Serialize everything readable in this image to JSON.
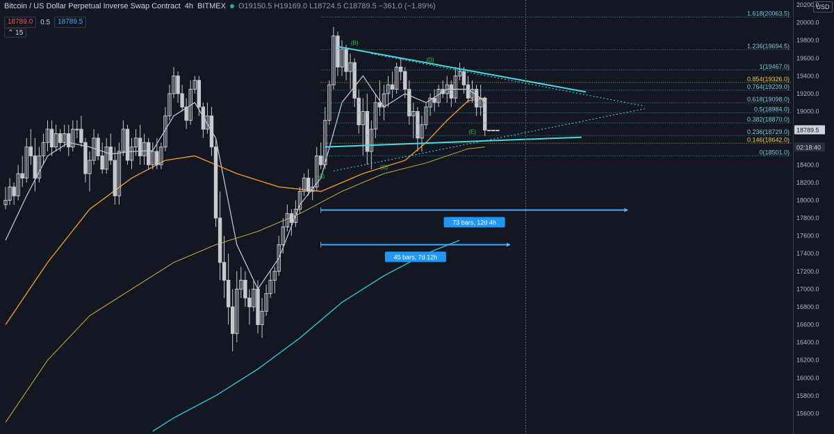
{
  "header": {
    "symbol": "Bitcoin / US Dollar Perpetual Inverse Swap Contract",
    "interval": "4h",
    "exchange": "BITMEX",
    "ohlc": "O19150.5  H19169.0  L18724.5  C18789.5  −361.0 (−1.89%)",
    "bid": "18789.0",
    "spread": "0.5",
    "ask": "18789.5",
    "collapse": "15",
    "currency": "USD"
  },
  "colors": {
    "background": "#131722",
    "candle": "#c8c9cc",
    "ema_fast": "#bcd1e8",
    "ema_mid": "#f0962d",
    "ema_slow": "#c9b041",
    "ema_long": "#2fc2d6",
    "trend": "#4dd9e3",
    "fib": "#3f8fa8",
    "fib_highlight": "#c89a2a",
    "wave": "#2ecc40",
    "range": "#2196f3"
  },
  "chart_data": {
    "type": "candlestick",
    "ylim": [
      15400,
      20200
    ],
    "yticks": [
      15600,
      15800,
      16000,
      16200,
      16400,
      16600,
      16800,
      17000,
      17200,
      17400,
      17600,
      17800,
      18000,
      18200,
      18400,
      18600,
      18800,
      19000,
      19200,
      19400,
      19600,
      19800,
      20000,
      20200
    ],
    "num_bars": 118,
    "candles": [
      [
        17950,
        18150,
        17900,
        18000
      ],
      [
        18000,
        18250,
        17950,
        18150
      ],
      [
        18150,
        18200,
        17950,
        18050
      ],
      [
        18050,
        18400,
        18000,
        18300
      ],
      [
        18300,
        18500,
        18150,
        18250
      ],
      [
        18250,
        18700,
        18200,
        18600
      ],
      [
        18600,
        18800,
        18400,
        18500
      ],
      [
        18500,
        18700,
        18100,
        18250
      ],
      [
        18250,
        18600,
        18200,
        18500
      ],
      [
        18500,
        18750,
        18400,
        18650
      ],
      [
        18650,
        18900,
        18550,
        18800
      ],
      [
        18800,
        18900,
        18500,
        18600
      ],
      [
        18600,
        18850,
        18550,
        18750
      ],
      [
        18750,
        18800,
        18550,
        18650
      ],
      [
        18650,
        18850,
        18600,
        18750
      ],
      [
        18750,
        18850,
        18500,
        18600
      ],
      [
        18600,
        18900,
        18550,
        18800
      ],
      [
        18800,
        18900,
        18700,
        18800
      ],
      [
        18800,
        18950,
        18600,
        18650
      ],
      [
        18650,
        18700,
        18200,
        18300
      ],
      [
        18300,
        18550,
        18100,
        18450
      ],
      [
        18450,
        18800,
        18400,
        18700
      ],
      [
        18700,
        18750,
        18450,
        18500
      ],
      [
        18500,
        18650,
        18300,
        18350
      ],
      [
        18350,
        18700,
        18300,
        18600
      ],
      [
        18600,
        18750,
        18400,
        18450
      ],
      [
        18450,
        18600,
        17950,
        18050
      ],
      [
        18050,
        18650,
        17950,
        18550
      ],
      [
        18550,
        18900,
        18500,
        18800
      ],
      [
        18800,
        18850,
        18400,
        18450
      ],
      [
        18450,
        18700,
        18350,
        18600
      ],
      [
        18600,
        18800,
        18500,
        18700
      ],
      [
        18700,
        18850,
        18400,
        18500
      ],
      [
        18500,
        18750,
        18400,
        18650
      ],
      [
        18650,
        18700,
        18350,
        18400
      ],
      [
        18400,
        18650,
        18350,
        18550
      ],
      [
        18550,
        18700,
        18350,
        18400
      ],
      [
        18400,
        18650,
        18350,
        18600
      ],
      [
        18600,
        19050,
        18550,
        18950
      ],
      [
        18950,
        19300,
        18900,
        19200
      ],
      [
        19200,
        19500,
        19150,
        19400
      ],
      [
        19400,
        19450,
        19100,
        19200
      ],
      [
        19200,
        19300,
        19000,
        19050
      ],
      [
        19050,
        19150,
        18800,
        18900
      ],
      [
        18900,
        19350,
        18850,
        19250
      ],
      [
        19250,
        19400,
        19200,
        19350
      ],
      [
        19350,
        19400,
        18950,
        19050
      ],
      [
        19050,
        19100,
        18700,
        18800
      ],
      [
        18800,
        19100,
        18750,
        18950
      ],
      [
        18950,
        19050,
        18500,
        18600
      ],
      [
        18600,
        18700,
        17700,
        17800
      ],
      [
        17800,
        18100,
        17100,
        17300
      ],
      [
        17300,
        17600,
        16900,
        17100
      ],
      [
        17100,
        17400,
        16600,
        16800
      ],
      [
        16800,
        17000,
        16300,
        16500
      ],
      [
        16500,
        17200,
        16400,
        17000
      ],
      [
        17000,
        17250,
        16900,
        17100
      ],
      [
        17100,
        17200,
        16800,
        16900
      ],
      [
        16900,
        17000,
        16600,
        16800
      ],
      [
        16800,
        17100,
        16750,
        17000
      ],
      [
        17000,
        17100,
        16500,
        16600
      ],
      [
        16600,
        16900,
        16450,
        16750
      ],
      [
        16750,
        17050,
        16700,
        16950
      ],
      [
        16950,
        17200,
        16900,
        17100
      ],
      [
        17100,
        17250,
        16950,
        17200
      ],
      [
        17200,
        17600,
        17150,
        17500
      ],
      [
        17500,
        17800,
        17400,
        17700
      ],
      [
        17700,
        17950,
        17650,
        17850
      ],
      [
        17850,
        17900,
        17600,
        17750
      ],
      [
        17750,
        18000,
        17700,
        17900
      ],
      [
        17900,
        18150,
        17850,
        18100
      ],
      [
        18100,
        18300,
        18050,
        18250
      ],
      [
        18250,
        18350,
        18050,
        18100
      ],
      [
        18100,
        18250,
        18000,
        18150
      ],
      [
        18150,
        18600,
        18100,
        18500
      ],
      [
        18500,
        18650,
        18350,
        18400
      ],
      [
        18400,
        19050,
        18350,
        18900
      ],
      [
        18900,
        19350,
        18850,
        19300
      ],
      [
        19300,
        19950,
        19250,
        19850
      ],
      [
        19850,
        19900,
        19400,
        19500
      ],
      [
        19500,
        19800,
        19400,
        19700
      ],
      [
        19700,
        19750,
        19350,
        19450
      ],
      [
        19450,
        19650,
        19250,
        19550
      ],
      [
        19550,
        19600,
        19050,
        19150
      ],
      [
        19150,
        19250,
        18750,
        18850
      ],
      [
        18850,
        19150,
        18500,
        19000
      ],
      [
        19000,
        19200,
        18400,
        18550
      ],
      [
        18550,
        18900,
        18350,
        18800
      ],
      [
        18800,
        19200,
        18700,
        19100
      ],
      [
        19100,
        19350,
        18950,
        19050
      ],
      [
        19050,
        19300,
        18900,
        19200
      ],
      [
        19200,
        19400,
        19050,
        19300
      ],
      [
        19300,
        19450,
        19150,
        19250
      ],
      [
        19250,
        19550,
        19200,
        19500
      ],
      [
        19500,
        19600,
        19350,
        19450
      ],
      [
        19450,
        19500,
        19150,
        19250
      ],
      [
        19250,
        19350,
        18850,
        18950
      ],
      [
        18950,
        19100,
        18700,
        19000
      ],
      [
        19000,
        19050,
        18550,
        18700
      ],
      [
        18700,
        18950,
        18550,
        18850
      ],
      [
        18850,
        19100,
        18800,
        19050
      ],
      [
        19050,
        19200,
        18950,
        19150
      ],
      [
        19150,
        19250,
        19000,
        19100
      ],
      [
        19100,
        19300,
        19050,
        19250
      ],
      [
        19250,
        19350,
        19150,
        19200
      ],
      [
        19200,
        19400,
        19100,
        19300
      ],
      [
        19300,
        19350,
        19050,
        19150
      ],
      [
        19150,
        19500,
        19100,
        19400
      ],
      [
        19400,
        19550,
        19350,
        19450
      ],
      [
        19450,
        19500,
        19200,
        19300
      ],
      [
        19300,
        19400,
        19100,
        19150
      ],
      [
        19150,
        19350,
        19100,
        19250
      ],
      [
        19250,
        19300,
        18950,
        19050
      ],
      [
        19050,
        19300,
        18950,
        19150
      ],
      [
        19150,
        19169,
        18724.5,
        18789.5
      ],
      [
        18789.5,
        18790,
        18780,
        18789.5
      ],
      [
        18789.5,
        18790,
        18785,
        18789.5
      ],
      [
        18789.5,
        18790,
        18785,
        18789.5
      ]
    ],
    "moving_averages": [
      {
        "name": "ema_fast",
        "points": [
          [
            0,
            17550
          ],
          [
            5,
            18050
          ],
          [
            10,
            18500
          ],
          [
            15,
            18650
          ],
          [
            20,
            18600
          ],
          [
            25,
            18520
          ],
          [
            30,
            18550
          ],
          [
            35,
            18560
          ],
          [
            40,
            18950
          ],
          [
            45,
            19100
          ],
          [
            50,
            18700
          ],
          [
            55,
            17500
          ],
          [
            60,
            17000
          ],
          [
            65,
            17350
          ],
          [
            70,
            17950
          ],
          [
            75,
            18250
          ],
          [
            80,
            19100
          ],
          [
            85,
            19400
          ],
          [
            90,
            19050
          ],
          [
            95,
            19200
          ],
          [
            100,
            19100
          ],
          [
            105,
            19250
          ],
          [
            110,
            19250
          ],
          [
            113,
            19150
          ],
          [
            114,
            19100
          ]
        ]
      },
      {
        "name": "ema_mid",
        "points": [
          [
            0,
            16600
          ],
          [
            10,
            17300
          ],
          [
            20,
            17900
          ],
          [
            30,
            18250
          ],
          [
            38,
            18450
          ],
          [
            45,
            18500
          ],
          [
            55,
            18300
          ],
          [
            65,
            18150
          ],
          [
            75,
            18100
          ],
          [
            85,
            18300
          ],
          [
            95,
            18450
          ],
          [
            100,
            18650
          ],
          [
            105,
            18900
          ],
          [
            110,
            19120
          ],
          [
            114,
            19150
          ]
        ]
      },
      {
        "name": "ema_slow",
        "points": [
          [
            0,
            15500
          ],
          [
            10,
            16200
          ],
          [
            20,
            16700
          ],
          [
            30,
            17000
          ],
          [
            40,
            17300
          ],
          [
            50,
            17500
          ],
          [
            60,
            17650
          ],
          [
            70,
            17850
          ],
          [
            80,
            18100
          ],
          [
            90,
            18300
          ],
          [
            100,
            18420
          ],
          [
            110,
            18580
          ],
          [
            114,
            18600
          ]
        ]
      },
      {
        "name": "ema_long",
        "points": [
          [
            35,
            15400
          ],
          [
            40,
            15550
          ],
          [
            50,
            15800
          ],
          [
            60,
            16100
          ],
          [
            70,
            16450
          ],
          [
            80,
            16850
          ],
          [
            90,
            17150
          ],
          [
            100,
            17400
          ],
          [
            108,
            17550
          ]
        ]
      }
    ],
    "fib_levels": [
      {
        "label": "1.618(20063.5)",
        "value": 20063.5,
        "highlight": false
      },
      {
        "label": "1.236(19694.5)",
        "value": 19694.5,
        "highlight": false
      },
      {
        "label": "1(19467.0)",
        "value": 19467.0,
        "highlight": false
      },
      {
        "label": "0.854(19326.0)",
        "value": 19326.0,
        "highlight": true
      },
      {
        "label": "0.764(19239.0)",
        "value": 19239.0,
        "highlight": false
      },
      {
        "label": "0.618(19098.0)",
        "value": 19098.0,
        "highlight": false
      },
      {
        "label": "0.5(18984.0)",
        "value": 18984.0,
        "highlight": false
      },
      {
        "label": "0.382(18870.0)",
        "value": 18870.0,
        "highlight": false
      },
      {
        "label": "0.236(18729.0)",
        "value": 18729.0,
        "highlight": false
      },
      {
        "label": "0.146(18642.0)",
        "value": 18642.0,
        "highlight": true
      },
      {
        "label": "0(18501.0)",
        "value": 18501.0,
        "highlight": false
      }
    ],
    "wave_labels": [
      {
        "label": "(A)",
        "bar": 75,
        "price": 18250
      },
      {
        "label": "(B)",
        "bar": 83,
        "price": 19750
      },
      {
        "label": "(C)",
        "bar": 90,
        "price": 18350
      },
      {
        "label": "(D)",
        "bar": 101,
        "price": 19560
      },
      {
        "label": "(E)",
        "bar": 111,
        "price": 18750
      }
    ],
    "price_labels": [
      {
        "label": "18789.5",
        "value": 18789.5
      },
      {
        "label": "02:18:40",
        "value": 18642
      }
    ],
    "range_measures": [
      {
        "label": "73 bars, 12d 4h",
        "bar_start": 75,
        "bar_end": 148,
        "price": 17890
      },
      {
        "label": "45 bars, 7d 12h",
        "bar_start": 75,
        "bar_end": 120,
        "price": 17500
      }
    ]
  }
}
